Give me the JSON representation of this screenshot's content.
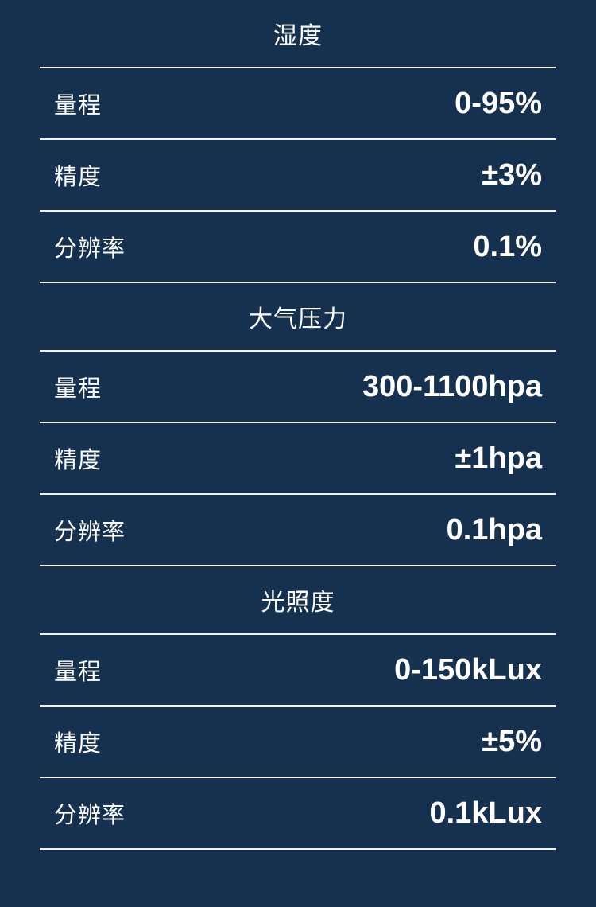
{
  "page": {
    "background_color": "#163150",
    "divider_color": "#f3f1ea",
    "text_color": "#ffffff"
  },
  "sections": [
    {
      "title": "湿度",
      "rows": [
        {
          "label": "量程",
          "value": "0-95%"
        },
        {
          "label": "精度",
          "value": "±3%"
        },
        {
          "label": "分辨率",
          "value": "0.1%"
        }
      ]
    },
    {
      "title": "大气压力",
      "rows": [
        {
          "label": "量程",
          "value": "300-1100hpa"
        },
        {
          "label": "精度",
          "value": "±1hpa"
        },
        {
          "label": "分辨率",
          "value": "0.1hpa"
        }
      ]
    },
    {
      "title": "光照度",
      "rows": [
        {
          "label": "量程",
          "value": "0-150kLux"
        },
        {
          "label": "精度",
          "value": "±5%"
        },
        {
          "label": "分辨率",
          "value": "0.1kLux"
        }
      ]
    }
  ]
}
